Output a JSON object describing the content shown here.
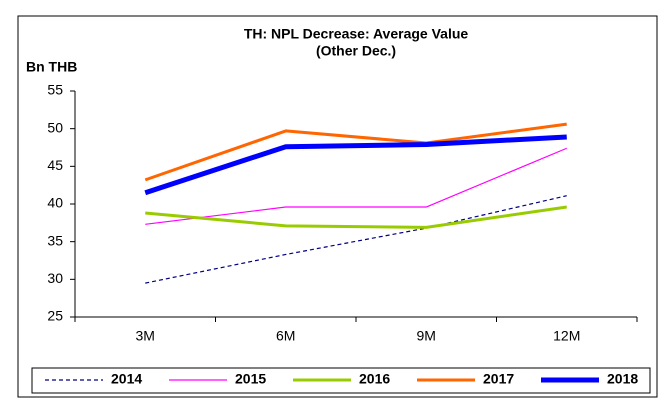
{
  "chart_data": {
    "type": "line",
    "title": [
      "TH: NPL Decrease: Average Value",
      "(Other Dec.)"
    ],
    "y_label": "Bn THB",
    "categories": [
      "3M",
      "6M",
      "9M",
      "12M"
    ],
    "ylim": [
      25,
      55
    ],
    "yticks": [
      25,
      30,
      35,
      40,
      45,
      50,
      55
    ],
    "grid": false,
    "legend": "bottom",
    "series": [
      {
        "name": "2014",
        "color": "#000080",
        "values": [
          29.5,
          33.3,
          36.8,
          41.1
        ]
      },
      {
        "name": "2015",
        "color": "#ff00ff",
        "values": [
          37.3,
          39.6,
          39.6,
          47.4
        ]
      },
      {
        "name": "2016",
        "color": "#99cc00",
        "values": [
          38.8,
          37.1,
          36.9,
          39.6
        ]
      },
      {
        "name": "2017",
        "color": "#ff6600",
        "values": [
          43.2,
          49.7,
          48.1,
          50.6
        ]
      },
      {
        "name": "2018",
        "color": "#0000ff",
        "values": [
          41.5,
          47.6,
          47.9,
          48.9
        ]
      }
    ]
  }
}
